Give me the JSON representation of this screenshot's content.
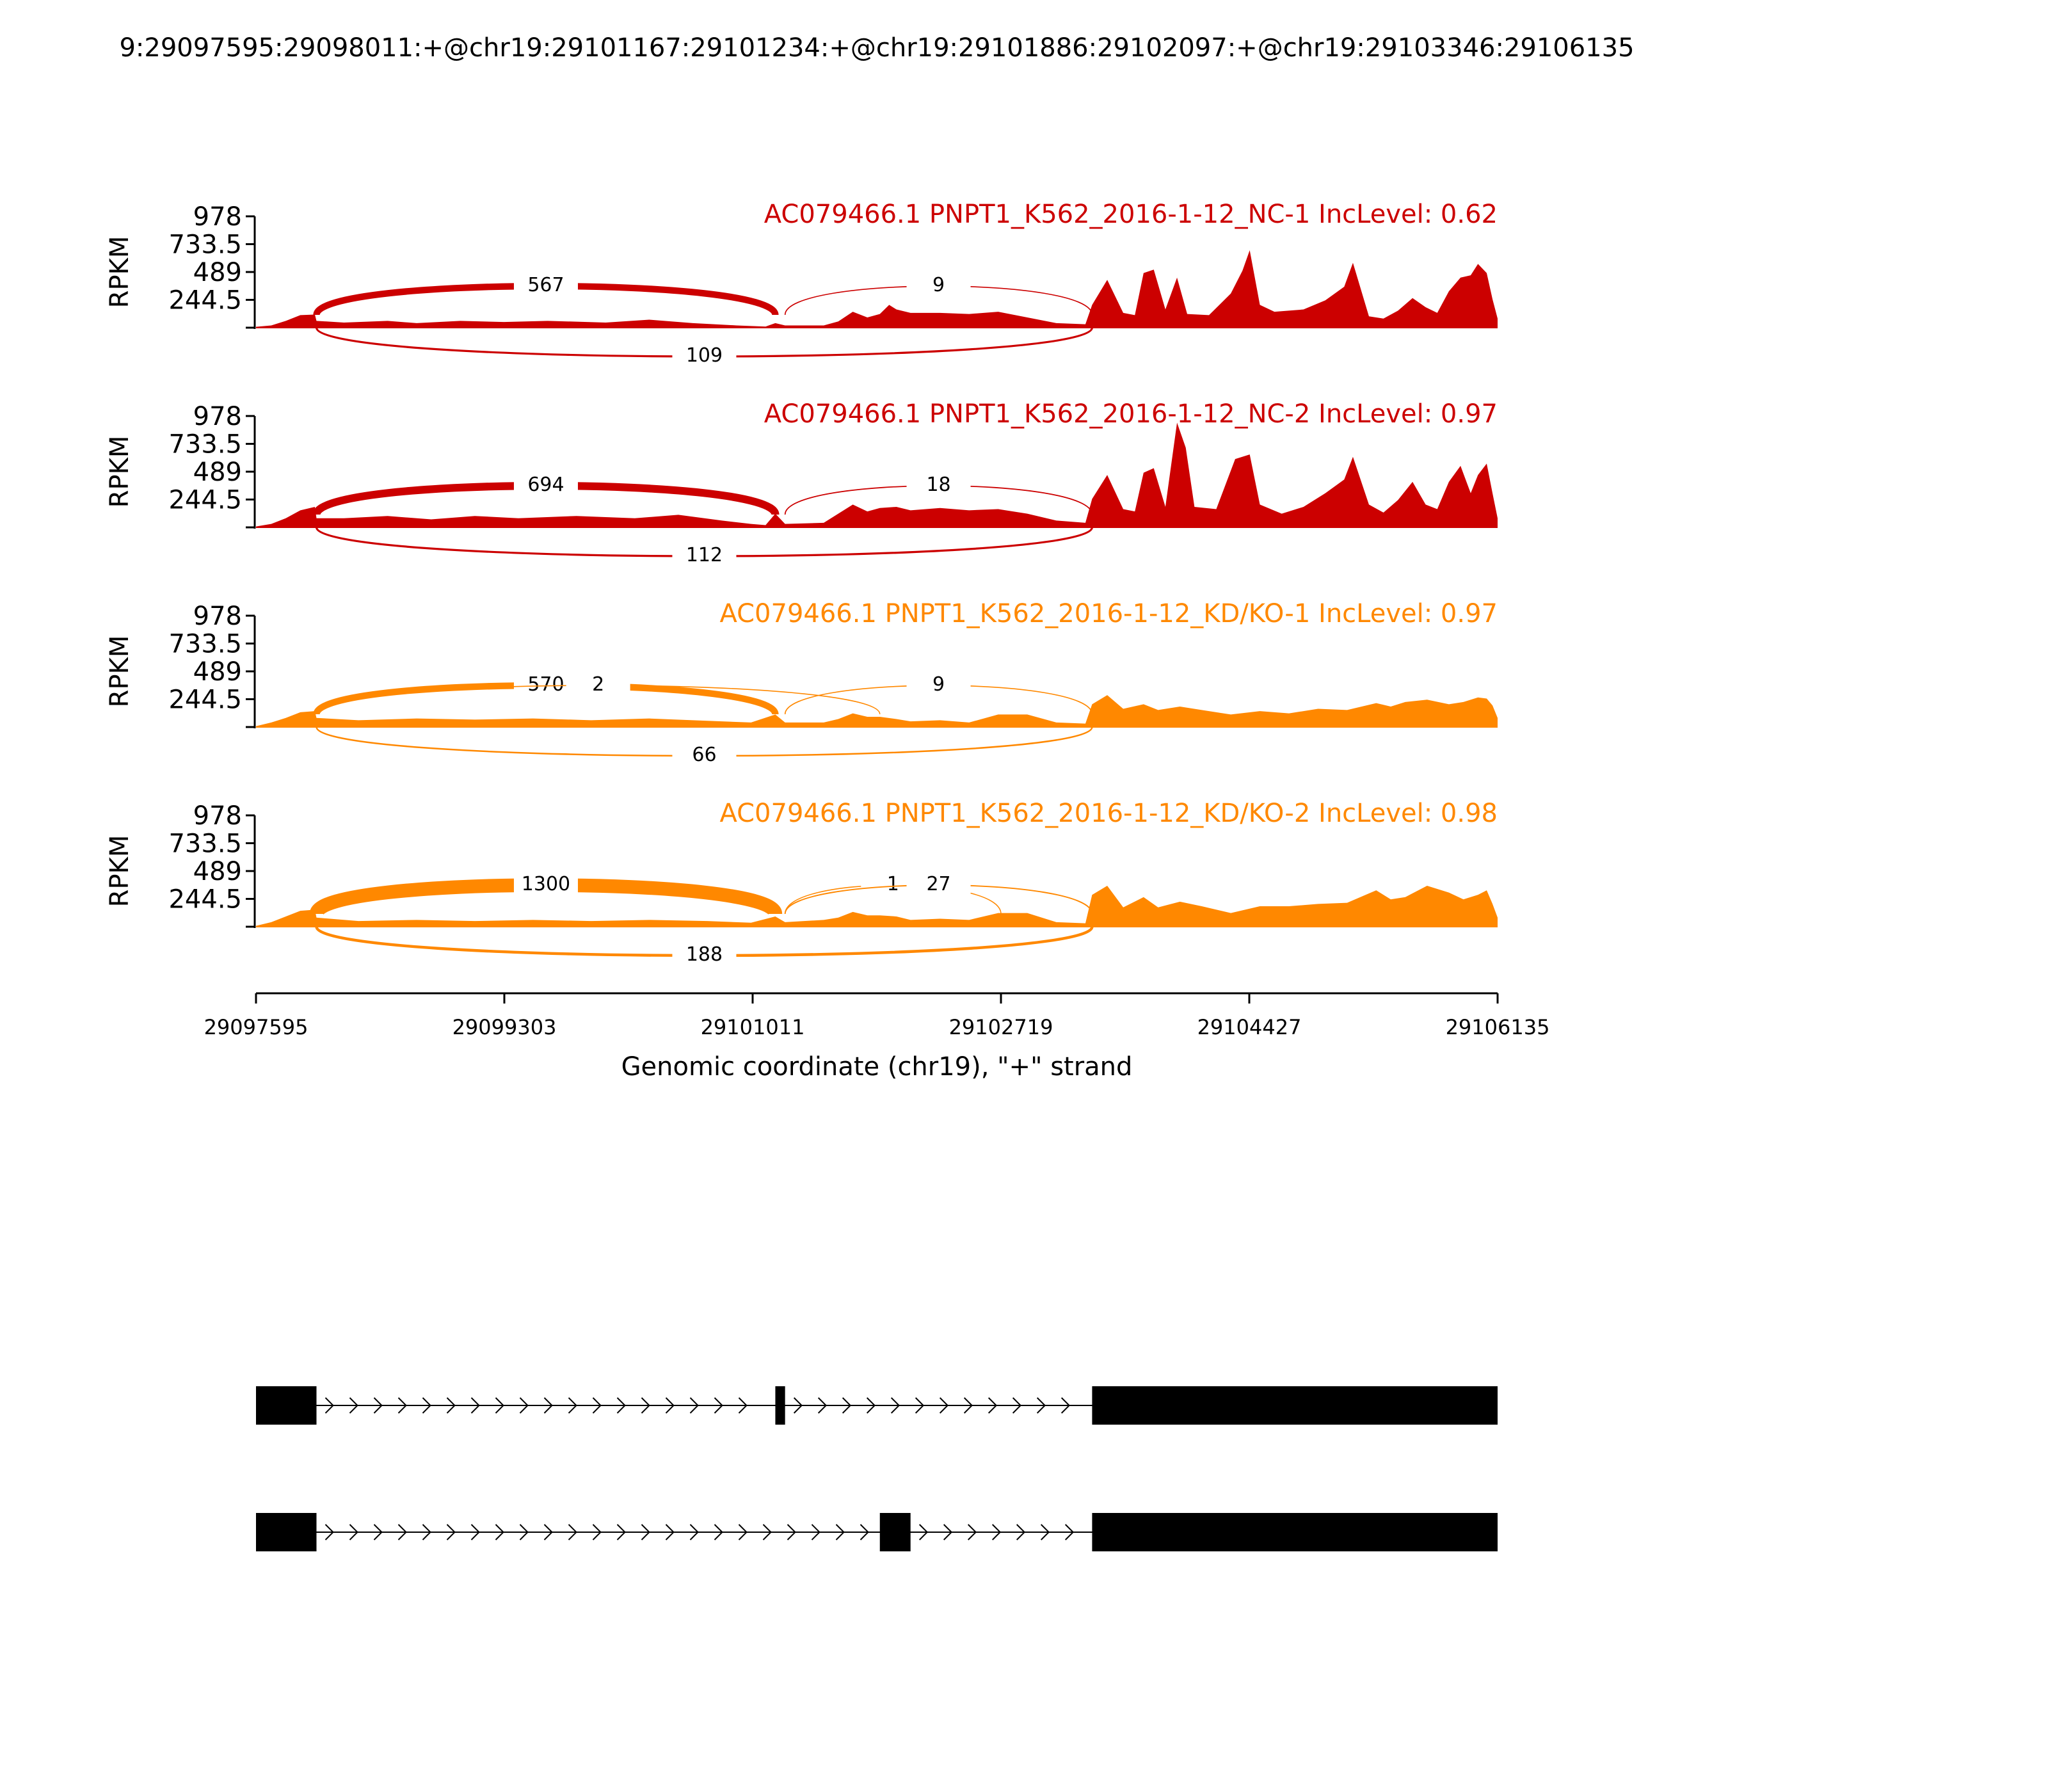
{
  "chart_data": {
    "type": "area",
    "title": "9:29097595:29098011:+@chr19:29101167:29101234:+@chr19:29101886:29102097:+@chr19:29103346:29106135",
    "x": {
      "label": "Genomic coordinate (chr19), \"+\" strand",
      "range": [
        29097595,
        29106135
      ],
      "ticks": [
        "29097595",
        "29099303",
        "29101011",
        "29102719",
        "29104427",
        "29106135"
      ]
    },
    "y": {
      "label": "RPKM",
      "range": [
        0,
        978
      ],
      "ticks": [
        "978",
        "733.5",
        "489",
        "244.5"
      ]
    },
    "colors": {
      "nc": "#cc0000",
      "kd": "#ff8800",
      "exon": "#000000"
    },
    "exons": [
      {
        "start": 29097595,
        "end": 29098011
      },
      {
        "start": 29101167,
        "end": 29101234
      },
      {
        "start": 29101886,
        "end": 29102097
      },
      {
        "start": 29103346,
        "end": 29106135
      }
    ],
    "panels": [
      {
        "name": "AC079466.1 PNPT1_K562_2016-1-12_NC-1 IncLevel: 0.62",
        "color": "#cc0000",
        "profile": [
          [
            29097595,
            8
          ],
          [
            29097700,
            20
          ],
          [
            29097800,
            60
          ],
          [
            29097900,
            110
          ],
          [
            29098000,
            115
          ],
          [
            29098011,
            60
          ],
          [
            29098200,
            45
          ],
          [
            29098500,
            60
          ],
          [
            29098700,
            40
          ],
          [
            29099000,
            60
          ],
          [
            29099300,
            50
          ],
          [
            29099600,
            60
          ],
          [
            29100000,
            45
          ],
          [
            29100300,
            70
          ],
          [
            29100600,
            40
          ],
          [
            29100900,
            20
          ],
          [
            29101100,
            10
          ],
          [
            29101167,
            40
          ],
          [
            29101234,
            20
          ],
          [
            29101500,
            20
          ],
          [
            29101600,
            55
          ],
          [
            29101700,
            140
          ],
          [
            29101800,
            90
          ],
          [
            29101886,
            120
          ],
          [
            29101950,
            200
          ],
          [
            29102000,
            160
          ],
          [
            29102097,
            130
          ],
          [
            29102300,
            130
          ],
          [
            29102500,
            120
          ],
          [
            29102700,
            140
          ],
          [
            29102900,
            90
          ],
          [
            29103100,
            40
          ],
          [
            29103300,
            30
          ],
          [
            29103346,
            200
          ],
          [
            29103450,
            420
          ],
          [
            29103560,
            130
          ],
          [
            29103640,
            110
          ],
          [
            29103700,
            480
          ],
          [
            29103770,
            510
          ],
          [
            29103850,
            160
          ],
          [
            29103930,
            440
          ],
          [
            29104000,
            120
          ],
          [
            29104150,
            110
          ],
          [
            29104300,
            300
          ],
          [
            29104380,
            500
          ],
          [
            29104430,
            680
          ],
          [
            29104500,
            200
          ],
          [
            29104600,
            140
          ],
          [
            29104800,
            160
          ],
          [
            29104950,
            240
          ],
          [
            29105080,
            360
          ],
          [
            29105140,
            570
          ],
          [
            29105250,
            100
          ],
          [
            29105350,
            80
          ],
          [
            29105450,
            150
          ],
          [
            29105550,
            260
          ],
          [
            29105640,
            180
          ],
          [
            29105720,
            130
          ],
          [
            29105800,
            320
          ],
          [
            29105880,
            440
          ],
          [
            29105950,
            460
          ],
          [
            29106000,
            560
          ],
          [
            29106060,
            480
          ],
          [
            29106100,
            250
          ],
          [
            29106135,
            80
          ]
        ],
        "junctions": [
          {
            "start": 29098011,
            "end": 29101167,
            "count": 567,
            "side": "top"
          },
          {
            "start": 29101234,
            "end": 29103346,
            "count": 9,
            "side": "top"
          },
          {
            "start": 29098011,
            "end": 29103346,
            "count": 109,
            "side": "bottom"
          }
        ]
      },
      {
        "name": "AC079466.1 PNPT1_K562_2016-1-12_NC-2 IncLevel: 0.97",
        "color": "#cc0000",
        "profile": [
          [
            29097595,
            8
          ],
          [
            29097700,
            30
          ],
          [
            29097800,
            80
          ],
          [
            29097900,
            150
          ],
          [
            29098000,
            180
          ],
          [
            29098011,
            80
          ],
          [
            29098200,
            80
          ],
          [
            29098500,
            100
          ],
          [
            29098800,
            70
          ],
          [
            29099100,
            100
          ],
          [
            29099400,
            80
          ],
          [
            29099800,
            100
          ],
          [
            29100200,
            80
          ],
          [
            29100500,
            110
          ],
          [
            29100800,
            60
          ],
          [
            29101000,
            30
          ],
          [
            29101100,
            20
          ],
          [
            29101167,
            120
          ],
          [
            29101234,
            30
          ],
          [
            29101500,
            40
          ],
          [
            29101600,
            120
          ],
          [
            29101700,
            200
          ],
          [
            29101800,
            140
          ],
          [
            29101886,
            170
          ],
          [
            29102000,
            180
          ],
          [
            29102097,
            150
          ],
          [
            29102300,
            170
          ],
          [
            29102500,
            150
          ],
          [
            29102700,
            160
          ],
          [
            29102900,
            120
          ],
          [
            29103100,
            60
          ],
          [
            29103300,
            40
          ],
          [
            29103346,
            250
          ],
          [
            29103450,
            460
          ],
          [
            29103560,
            160
          ],
          [
            29103640,
            140
          ],
          [
            29103700,
            480
          ],
          [
            29103770,
            520
          ],
          [
            29103850,
            180
          ],
          [
            29103930,
            920
          ],
          [
            29103990,
            700
          ],
          [
            29104050,
            180
          ],
          [
            29104200,
            160
          ],
          [
            29104330,
            600
          ],
          [
            29104430,
            640
          ],
          [
            29104500,
            200
          ],
          [
            29104650,
            120
          ],
          [
            29104800,
            180
          ],
          [
            29104950,
            300
          ],
          [
            29105080,
            420
          ],
          [
            29105140,
            620
          ],
          [
            29105250,
            200
          ],
          [
            29105350,
            130
          ],
          [
            29105450,
            240
          ],
          [
            29105550,
            400
          ],
          [
            29105640,
            200
          ],
          [
            29105720,
            160
          ],
          [
            29105800,
            400
          ],
          [
            29105880,
            540
          ],
          [
            29105950,
            300
          ],
          [
            29106000,
            460
          ],
          [
            29106060,
            560
          ],
          [
            29106100,
            300
          ],
          [
            29106135,
            80
          ]
        ],
        "junctions": [
          {
            "start": 29098011,
            "end": 29101167,
            "count": 694,
            "side": "top"
          },
          {
            "start": 29101234,
            "end": 29103346,
            "count": 18,
            "side": "top"
          },
          {
            "start": 29098011,
            "end": 29103346,
            "count": 112,
            "side": "bottom"
          }
        ]
      },
      {
        "name": "AC079466.1 PNPT1_K562_2016-1-12_KD/KO-1 IncLevel: 0.97",
        "color": "#ff8800",
        "profile": [
          [
            29097595,
            8
          ],
          [
            29097700,
            40
          ],
          [
            29097800,
            80
          ],
          [
            29097900,
            130
          ],
          [
            29098000,
            140
          ],
          [
            29098011,
            80
          ],
          [
            29098300,
            60
          ],
          [
            29098700,
            75
          ],
          [
            29099100,
            65
          ],
          [
            29099500,
            75
          ],
          [
            29099900,
            60
          ],
          [
            29100300,
            75
          ],
          [
            29100700,
            55
          ],
          [
            29101000,
            40
          ],
          [
            29101167,
            110
          ],
          [
            29101234,
            40
          ],
          [
            29101500,
            40
          ],
          [
            29101600,
            70
          ],
          [
            29101700,
            120
          ],
          [
            29101800,
            90
          ],
          [
            29101886,
            90
          ],
          [
            29102000,
            70
          ],
          [
            29102097,
            50
          ],
          [
            29102300,
            60
          ],
          [
            29102500,
            40
          ],
          [
            29102700,
            110
          ],
          [
            29102900,
            110
          ],
          [
            29103100,
            40
          ],
          [
            29103300,
            30
          ],
          [
            29103346,
            200
          ],
          [
            29103450,
            280
          ],
          [
            29103560,
            160
          ],
          [
            29103700,
            200
          ],
          [
            29103800,
            150
          ],
          [
            29103950,
            180
          ],
          [
            29104100,
            150
          ],
          [
            29104300,
            110
          ],
          [
            29104500,
            140
          ],
          [
            29104700,
            120
          ],
          [
            29104900,
            160
          ],
          [
            29105100,
            150
          ],
          [
            29105300,
            210
          ],
          [
            29105400,
            180
          ],
          [
            29105500,
            220
          ],
          [
            29105650,
            240
          ],
          [
            29105800,
            200
          ],
          [
            29105900,
            220
          ],
          [
            29106000,
            260
          ],
          [
            29106060,
            250
          ],
          [
            29106100,
            190
          ],
          [
            29106135,
            80
          ]
        ],
        "junctions": [
          {
            "start": 29098011,
            "end": 29101167,
            "count": 570,
            "side": "top"
          },
          {
            "start": 29098011,
            "end": 29101886,
            "count": 2,
            "side": "top"
          },
          {
            "start": 29101234,
            "end": 29103346,
            "count": 9,
            "side": "top"
          },
          {
            "start": 29098011,
            "end": 29103346,
            "count": 66,
            "side": "bottom"
          }
        ]
      },
      {
        "name": "AC079466.1 PNPT1_K562_2016-1-12_KD/KO-2 IncLevel: 0.98",
        "color": "#ff8800",
        "profile": [
          [
            29097595,
            8
          ],
          [
            29097700,
            40
          ],
          [
            29097800,
            90
          ],
          [
            29097900,
            140
          ],
          [
            29098000,
            150
          ],
          [
            29098011,
            80
          ],
          [
            29098300,
            50
          ],
          [
            29098700,
            60
          ],
          [
            29099100,
            50
          ],
          [
            29099500,
            60
          ],
          [
            29099900,
            50
          ],
          [
            29100300,
            60
          ],
          [
            29100700,
            50
          ],
          [
            29101000,
            35
          ],
          [
            29101167,
            90
          ],
          [
            29101234,
            40
          ],
          [
            29101500,
            60
          ],
          [
            29101600,
            80
          ],
          [
            29101700,
            130
          ],
          [
            29101800,
            100
          ],
          [
            29101886,
            100
          ],
          [
            29102000,
            90
          ],
          [
            29102097,
            60
          ],
          [
            29102300,
            70
          ],
          [
            29102500,
            60
          ],
          [
            29102700,
            120
          ],
          [
            29102900,
            120
          ],
          [
            29103100,
            40
          ],
          [
            29103300,
            30
          ],
          [
            29103346,
            280
          ],
          [
            29103450,
            360
          ],
          [
            29103560,
            170
          ],
          [
            29103700,
            260
          ],
          [
            29103800,
            170
          ],
          [
            29103950,
            220
          ],
          [
            29104100,
            180
          ],
          [
            29104300,
            120
          ],
          [
            29104500,
            180
          ],
          [
            29104700,
            180
          ],
          [
            29104900,
            200
          ],
          [
            29105100,
            210
          ],
          [
            29105300,
            320
          ],
          [
            29105400,
            240
          ],
          [
            29105500,
            260
          ],
          [
            29105650,
            360
          ],
          [
            29105800,
            300
          ],
          [
            29105900,
            240
          ],
          [
            29106000,
            280
          ],
          [
            29106060,
            320
          ],
          [
            29106100,
            200
          ],
          [
            29106135,
            80
          ]
        ],
        "junctions": [
          {
            "start": 29098011,
            "end": 29101167,
            "count": 1300,
            "side": "top"
          },
          {
            "start": 29101234,
            "end": 29102719,
            "count": 1,
            "side": "top"
          },
          {
            "start": 29101234,
            "end": 29103346,
            "count": 27,
            "side": "top"
          },
          {
            "start": 29098011,
            "end": 29103346,
            "count": 188,
            "side": "bottom"
          }
        ]
      }
    ]
  }
}
